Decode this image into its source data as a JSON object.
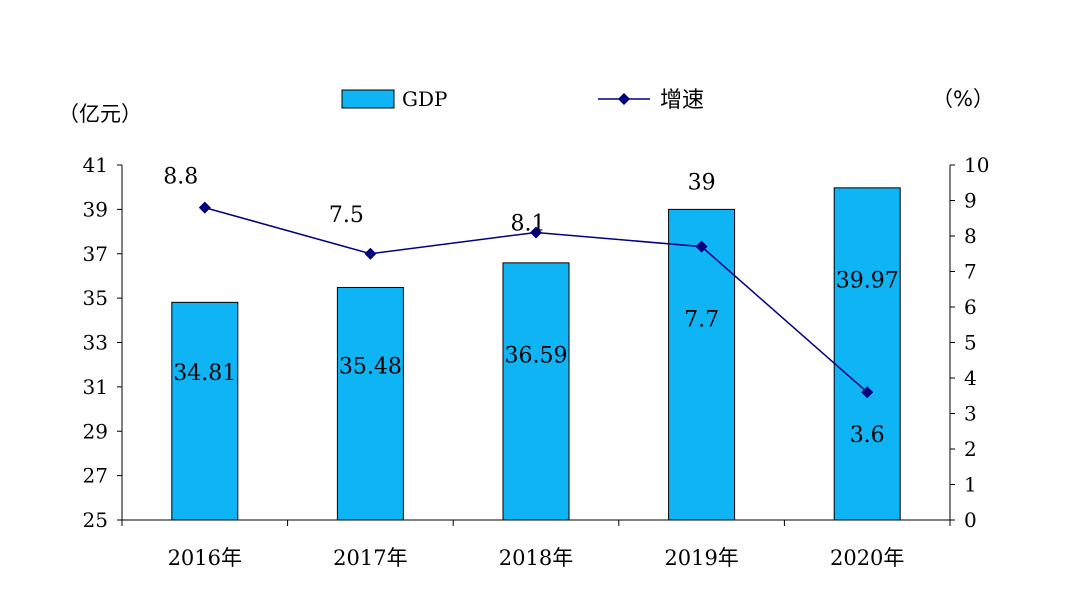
{
  "chart_data": {
    "type": "bar",
    "categories": [
      "2016年",
      "2017年",
      "2018年",
      "2019年",
      "2020年"
    ],
    "series": [
      {
        "name": "GDP",
        "type": "bar",
        "axis": "left",
        "values": [
          34.81,
          35.48,
          36.59,
          39.0,
          39.97
        ],
        "labels": [
          "34.81",
          "35.48",
          "36.59",
          "39",
          "39.97"
        ]
      },
      {
        "name": "增速",
        "type": "line",
        "axis": "right",
        "values": [
          8.8,
          7.5,
          8.1,
          7.7,
          3.6
        ],
        "labels": [
          "8.8",
          "7.5",
          "8.1",
          "7.7",
          "3.6"
        ]
      }
    ],
    "left_axis": {
      "unit_label": "（亿元）",
      "min": 25,
      "max": 41,
      "ticks": [
        "41",
        "39",
        "37",
        "35",
        "33",
        "31",
        "29",
        "27",
        "25"
      ]
    },
    "right_axis": {
      "unit_label": "（%）",
      "min": 0,
      "max": 10,
      "ticks": [
        "10",
        "9",
        "8",
        "7",
        "6",
        "5",
        "4",
        "3",
        "2",
        "1",
        "0"
      ]
    },
    "legend_position": "top-center",
    "grid": false,
    "colors": {
      "bar_fill": "#0FB4F5",
      "bar_stroke": "#000000",
      "line": "#000080",
      "axis": "#000000",
      "text": "#000000"
    }
  }
}
